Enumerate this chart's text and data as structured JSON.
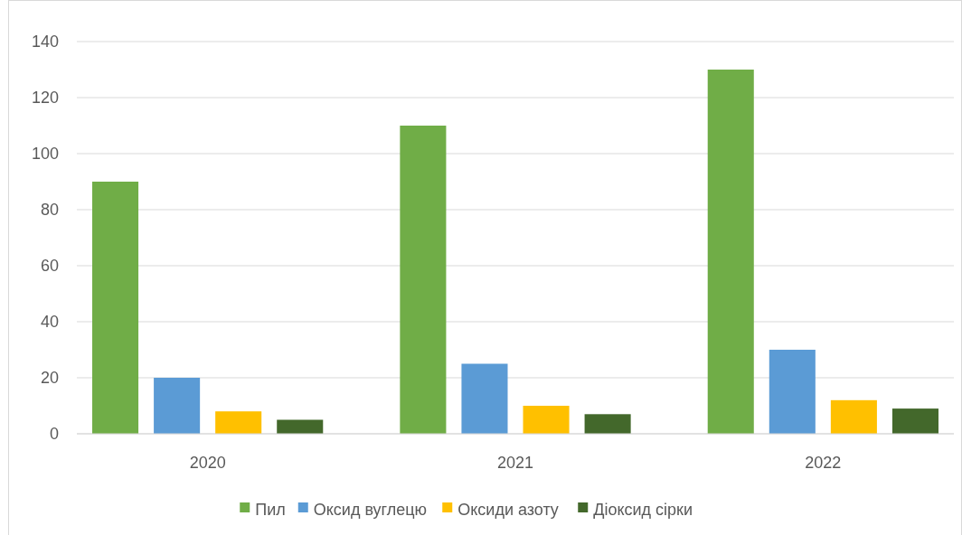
{
  "chart_data": {
    "type": "bar",
    "categories": [
      "2020",
      "2021",
      "2022"
    ],
    "series": [
      {
        "name": "Пил",
        "color": "#70ad47",
        "values": [
          90,
          110,
          130
        ]
      },
      {
        "name": "Оксид вуглецю",
        "color": "#5b9bd5",
        "values": [
          20,
          25,
          30
        ]
      },
      {
        "name": "Оксиди азоту",
        "color": "#ffc000",
        "values": [
          8,
          10,
          12
        ]
      },
      {
        "name": "Діоксид сірки",
        "color": "#43682b",
        "values": [
          5,
          7,
          9
        ]
      }
    ],
    "ylim": [
      0,
      140
    ],
    "yticks": [
      0,
      20,
      40,
      60,
      80,
      100,
      120,
      140
    ],
    "grid": "y",
    "legend": "bottom"
  }
}
